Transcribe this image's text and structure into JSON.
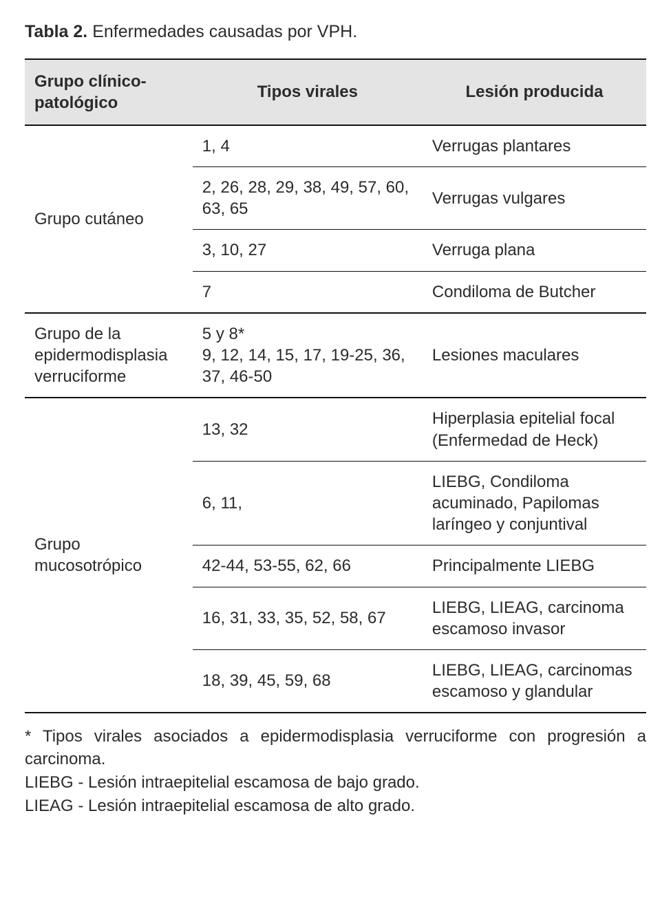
{
  "caption": {
    "label": "Tabla 2.",
    "text": "Enfermedades causadas por VPH."
  },
  "headers": {
    "group": "Grupo clínico-patológico",
    "types": "Tipos virales",
    "lesion": "Lesión producida"
  },
  "groups": [
    {
      "name": "Grupo cutáneo",
      "rows": [
        {
          "types": "1, 4",
          "lesion": "Verrugas plantares"
        },
        {
          "types": "2, 26, 28, 29, 38, 49, 57, 60, 63, 65",
          "lesion": "Verrugas vulgares"
        },
        {
          "types": "3, 10, 27",
          "lesion": "Verruga plana"
        },
        {
          "types": "7",
          "lesion": "Condiloma de Butcher"
        }
      ]
    },
    {
      "name": "Grupo de la epidermodisplasia verruciforme",
      "rows": [
        {
          "types": "5 y 8*\n9, 12, 14, 15, 17, 19-25, 36, 37, 46-50",
          "lesion": "Lesiones maculares"
        }
      ]
    },
    {
      "name": "Grupo mucosotrópico",
      "rows": [
        {
          "types": "13, 32",
          "lesion": "Hiperplasia epitelial focal (Enfermedad de Heck)"
        },
        {
          "types": "6, 11,",
          "lesion": "LIEBG, Condiloma acuminado, Papilomas laríngeo y conjuntival"
        },
        {
          "types": "42-44, 53-55, 62, 66",
          "lesion": "Principalmente LIEBG"
        },
        {
          "types": "16, 31, 33, 35, 52, 58, 67",
          "lesion": "LIEBG, LIEAG, carcinoma escamoso invasor"
        },
        {
          "types": "18, 39, 45, 59, 68",
          "lesion": "LIEBG, LIEAG, carcinomas escamoso y glandular"
        }
      ]
    }
  ],
  "footnotes": [
    "* Tipos virales asociados a epidermodisplasia verruciforme con progresión a carcinoma.",
    "LIEBG - Lesión intraepitelial escamosa de bajo grado.",
    "LIEAG - Lesión intraepitelial escamosa de alto grado."
  ],
  "colors": {
    "header_bg": "#e4e4e4",
    "rule": "#111111",
    "text": "#2b2b2b",
    "background": "#ffffff"
  },
  "typography": {
    "base_pt": 18,
    "header_weight": 700
  }
}
